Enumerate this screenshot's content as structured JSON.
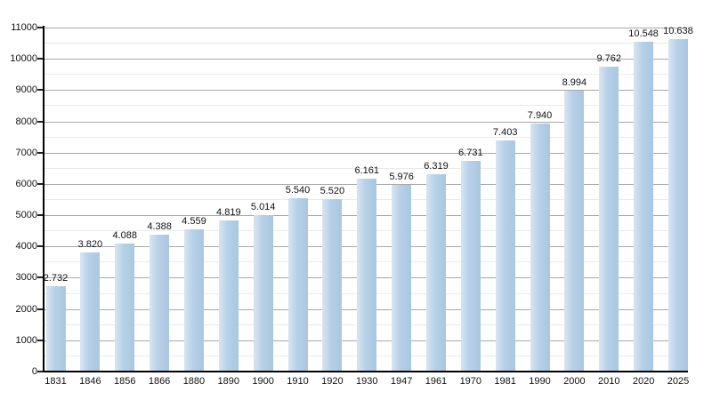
{
  "chart_data": {
    "type": "bar",
    "title": "",
    "xlabel": "",
    "ylabel": "",
    "categories": [
      "1831",
      "1846",
      "1856",
      "1866",
      "1880",
      "1890",
      "1900",
      "1910",
      "1920",
      "1930",
      "1947",
      "1961",
      "1970",
      "1981",
      "1990",
      "2000",
      "2010",
      "2020",
      "2025"
    ],
    "values": [
      2732,
      3820,
      4088,
      4388,
      4559,
      4819,
      5014,
      5540,
      5520,
      6161,
      5976,
      6319,
      6731,
      7403,
      7940,
      8994,
      9762,
      10548,
      10638
    ],
    "value_labels": [
      "2.732",
      "3.820",
      "4.088",
      "4.388",
      "4.559",
      "4.819",
      "5.014",
      "5.540",
      "5.520",
      "6.161",
      "5.976",
      "6.319",
      "6.731",
      "7.403",
      "7.940",
      "8.994",
      "9.762",
      "10.548",
      "10.638"
    ],
    "ylim": [
      0,
      11000
    ],
    "y_major_step": 1000,
    "y_minor_step": 500,
    "y_tick_labels": [
      "0",
      "1000",
      "2000",
      "3000",
      "4000",
      "5000",
      "6000",
      "7000",
      "8000",
      "9000",
      "10000",
      "11000"
    ],
    "grid": "horizontal, major and minor, on",
    "legend": "none"
  },
  "colors": {
    "background": "#ffffff",
    "bar_fill": "#aac7e1",
    "bar_fill_highlight": "#d8e5f2",
    "major_gridline": "#a8a8a8",
    "minor_gridline": "#eaeaea",
    "axis": "#000000",
    "text": "#111111"
  }
}
